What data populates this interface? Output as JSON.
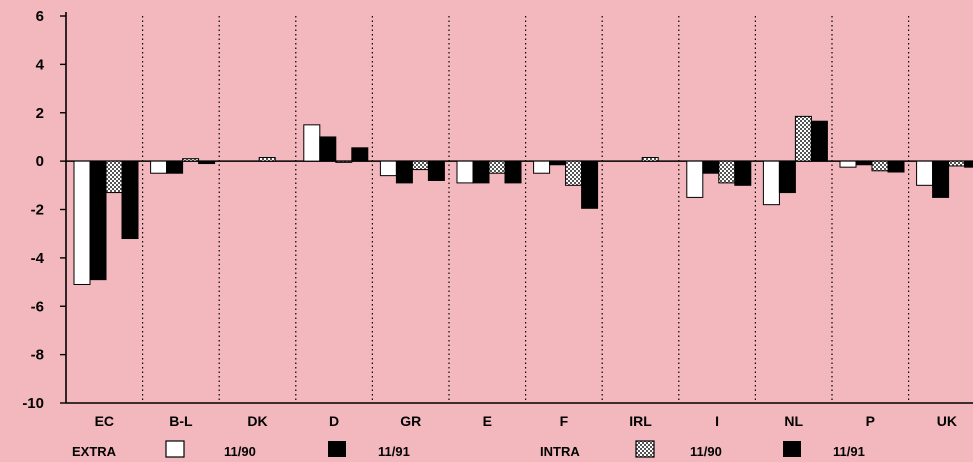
{
  "colors": {
    "background": "#f3b8bd",
    "extra_11_90": "#ffffff",
    "extra_11_91": "#000000",
    "intra_11_90": "#8a8a8a",
    "intra_11_91": "#000000"
  },
  "legend": {
    "extra_label": "EXTRA",
    "intra_label": "INTRA",
    "labels": [
      "11/90",
      "11/91",
      "11/90",
      "11/91"
    ]
  },
  "chart_data": {
    "type": "bar",
    "title": "",
    "xlabel": "",
    "ylabel": "",
    "ylim": [
      -10,
      6
    ],
    "yticks": [
      6,
      4,
      2,
      0,
      -2,
      -4,
      -6,
      -8,
      -10
    ],
    "grid": "vertical dotted separators between categories",
    "legend_position": "bottom",
    "categories": [
      "EC",
      "B-L",
      "DK",
      "D",
      "GR",
      "E",
      "F",
      "IRL",
      "I",
      "NL",
      "P",
      "UK"
    ],
    "series": [
      {
        "group": "EXTRA",
        "name": "11/90",
        "pattern": "white",
        "values": [
          -5.1,
          -0.5,
          0.0,
          1.5,
          -0.6,
          -0.9,
          -0.5,
          0.0,
          -1.5,
          -1.8,
          -0.25,
          -1.0
        ]
      },
      {
        "group": "EXTRA",
        "name": "11/91",
        "pattern": "black",
        "values": [
          -4.9,
          -0.5,
          0.0,
          1.0,
          -0.9,
          -0.9,
          -0.15,
          0.0,
          -0.5,
          -1.3,
          -0.15,
          -1.5
        ]
      },
      {
        "group": "INTRA",
        "name": "11/90",
        "pattern": "hatched",
        "values": [
          -1.3,
          0.1,
          0.15,
          -0.05,
          -0.35,
          -0.5,
          -1.0,
          0.15,
          -0.9,
          1.85,
          -0.4,
          -0.2
        ]
      },
      {
        "group": "INTRA",
        "name": "11/91",
        "pattern": "black",
        "values": [
          -3.2,
          -0.1,
          0.0,
          0.55,
          -0.8,
          -0.9,
          -1.95,
          0.0,
          -1.0,
          1.65,
          -0.45,
          -0.25
        ]
      }
    ]
  }
}
